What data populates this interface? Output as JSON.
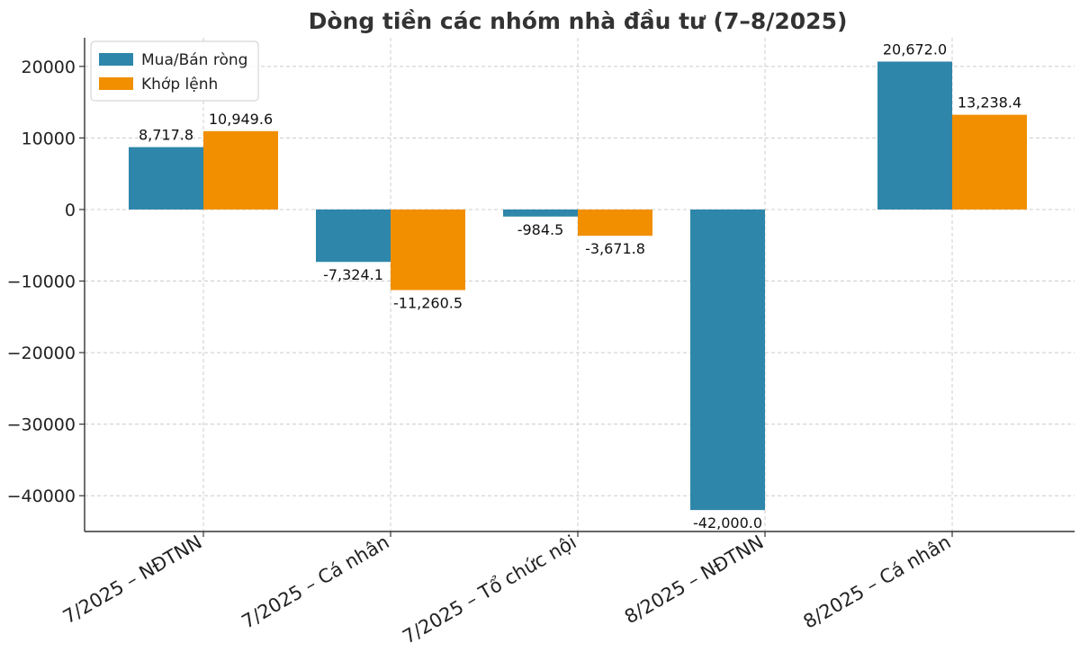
{
  "chart_data": {
    "type": "bar",
    "title": "Dòng tiền các nhóm nhà đầu tư (7–8/2025)",
    "xlabel": "",
    "ylabel": "",
    "categories": [
      "7/2025 – NĐTNN",
      "7/2025 – Cá nhân",
      "7/2025 – Tổ chức nội",
      "8/2025 – NĐTNN",
      "8/2025 – Cá nhân"
    ],
    "series": [
      {
        "name": "Mua/Bán ròng",
        "color": "#2E86AB",
        "values": [
          8717.8,
          -7324.1,
          -984.5,
          -42000.0,
          20672.0
        ],
        "labels": [
          "8,717.8",
          "-7,324.1",
          "-984.5",
          "-42,000.0",
          "20,672.0"
        ]
      },
      {
        "name": "Khớp lệnh",
        "color": "#F18F01",
        "values": [
          10949.6,
          -11260.5,
          -3671.8,
          null,
          13238.4
        ],
        "labels": [
          "10,949.6",
          "-11,260.5",
          "-3,671.8",
          null,
          "13,238.4"
        ]
      }
    ],
    "yticks": [
      20000,
      10000,
      0,
      -10000,
      -20000,
      -30000,
      -40000
    ],
    "ytick_labels": [
      "20000",
      "10000",
      "0",
      "−10000",
      "−20000",
      "−30000",
      "−40000"
    ],
    "ylim": [
      -45000,
      24000
    ],
    "grid": true,
    "legend_position": "upper-left"
  }
}
